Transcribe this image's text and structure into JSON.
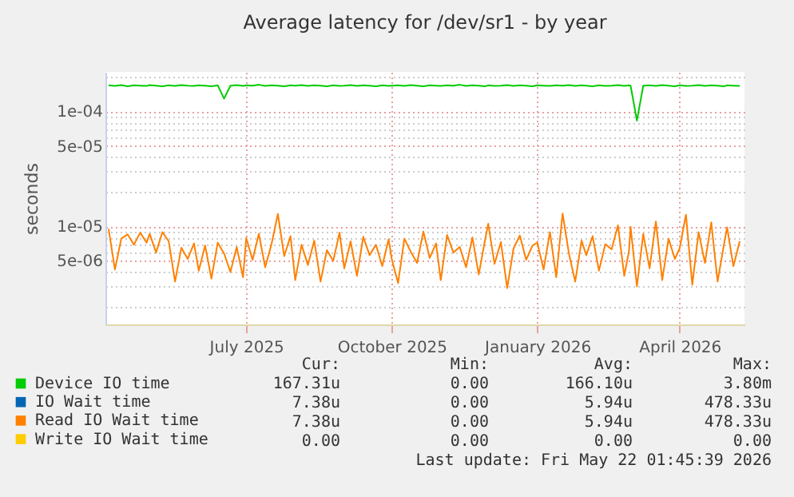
{
  "chart_data": {
    "type": "line",
    "title": "Average latency for /dev/sr1 - by year",
    "ylabel": "seconds",
    "log": "y",
    "grid": true,
    "legend": "bottom left",
    "line_style": "solid",
    "marker": "none",
    "x": [
      "2025-04-05",
      "2025-04-09",
      "2025-04-13",
      "2025-04-17",
      "2025-04-21",
      "2025-04-25",
      "2025-04-29",
      "2025-05-01",
      "2025-05-05",
      "2025-05-09",
      "2025-05-13",
      "2025-05-17",
      "2025-05-21",
      "2025-05-25",
      "2025-05-29",
      "2025-06-01",
      "2025-06-05",
      "2025-06-09",
      "2025-06-13",
      "2025-06-17",
      "2025-06-21",
      "2025-06-25",
      "2025-06-29",
      "2025-07-01",
      "2025-07-05",
      "2025-07-09",
      "2025-07-13",
      "2025-07-17",
      "2025-07-21",
      "2025-07-25",
      "2025-07-29",
      "2025-08-01",
      "2025-08-05",
      "2025-08-09",
      "2025-08-13",
      "2025-08-17",
      "2025-08-21",
      "2025-08-25",
      "2025-08-29",
      "2025-09-01",
      "2025-09-05",
      "2025-09-09",
      "2025-09-13",
      "2025-09-17",
      "2025-09-21",
      "2025-09-25",
      "2025-09-29",
      "2025-10-01",
      "2025-10-05",
      "2025-10-09",
      "2025-10-13",
      "2025-10-17",
      "2025-10-21",
      "2025-10-25",
      "2025-10-29",
      "2025-11-01",
      "2025-11-05",
      "2025-11-09",
      "2025-11-13",
      "2025-11-17",
      "2025-11-21",
      "2025-11-25",
      "2025-11-29",
      "2025-12-01",
      "2025-12-05",
      "2025-12-09",
      "2025-12-13",
      "2025-12-17",
      "2025-12-21",
      "2025-12-25",
      "2025-12-29",
      "2026-01-01",
      "2026-01-05",
      "2026-01-09",
      "2026-01-13",
      "2026-01-17",
      "2026-01-21",
      "2026-01-25",
      "2026-01-29",
      "2026-02-01",
      "2026-02-05",
      "2026-02-09",
      "2026-02-13",
      "2026-02-17",
      "2026-02-21",
      "2026-02-25",
      "2026-02-28",
      "2026-03-01",
      "2026-03-05",
      "2026-03-09",
      "2026-03-13",
      "2026-03-17",
      "2026-03-21",
      "2026-03-25",
      "2026-03-29",
      "2026-04-01",
      "2026-04-05",
      "2026-04-09",
      "2026-04-13",
      "2026-04-17",
      "2026-04-21",
      "2026-04-25",
      "2026-04-29",
      "2026-05-01",
      "2026-05-05",
      "2026-05-09"
    ],
    "xlim": [
      "2025-04-03",
      "2026-05-12"
    ],
    "xticks": [
      {
        "value": "2025-07-01",
        "label": "July 2025"
      },
      {
        "value": "2025-10-01",
        "label": "October 2025"
      },
      {
        "value": "2026-01-01",
        "label": "January 2026"
      },
      {
        "value": "2026-04-01",
        "label": "April 2026"
      }
    ],
    "ylim": [
      1.4e-06,
      0.00022
    ],
    "yticks": [
      {
        "value": 2e-06,
        "label": null
      },
      {
        "value": 3e-06,
        "label": null
      },
      {
        "value": 4e-06,
        "label": null
      },
      {
        "value": 5e-06,
        "label": "5e-06"
      },
      {
        "value": 6e-06,
        "label": null
      },
      {
        "value": 7e-06,
        "label": null
      },
      {
        "value": 8e-06,
        "label": null
      },
      {
        "value": 9e-06,
        "label": null
      },
      {
        "value": 1e-05,
        "label": "1e-05"
      },
      {
        "value": 2e-05,
        "label": null
      },
      {
        "value": 3e-05,
        "label": null
      },
      {
        "value": 4e-05,
        "label": null
      },
      {
        "value": 5e-05,
        "label": "5e-05"
      },
      {
        "value": 6e-05,
        "label": null
      },
      {
        "value": 7e-05,
        "label": null
      },
      {
        "value": 8e-05,
        "label": null
      },
      {
        "value": 9e-05,
        "label": null
      },
      {
        "value": 0.0001,
        "label": "1e-04"
      },
      {
        "value": 0.0002,
        "label": null
      }
    ],
    "series": [
      {
        "name": "Device IO time",
        "color": "#00cc00",
        "values": [
          0.000168,
          0.000166,
          0.000169,
          0.000165,
          0.000168,
          0.000167,
          0.000166,
          0.000169,
          0.000167,
          0.000165,
          0.000168,
          0.000166,
          0.000169,
          0.000167,
          0.000166,
          0.000168,
          0.000167,
          0.000165,
          0.000168,
          0.000129,
          0.000167,
          0.000169,
          0.000166,
          0.000168,
          0.000167,
          0.00017,
          0.000166,
          0.000168,
          0.000167,
          0.000165,
          0.000168,
          0.000167,
          0.000169,
          0.000166,
          0.000168,
          0.000167,
          0.000165,
          0.000168,
          0.000166,
          0.000167,
          0.000169,
          0.000166,
          0.000168,
          0.000167,
          0.000165,
          0.000168,
          0.000166,
          0.000167,
          0.000168,
          0.000166,
          0.000169,
          0.000167,
          0.000165,
          0.000168,
          0.000167,
          0.000166,
          0.000168,
          0.000167,
          0.00017,
          0.000166,
          0.000168,
          0.000167,
          0.000165,
          0.000168,
          0.000166,
          0.000167,
          0.000169,
          0.000166,
          0.000168,
          0.000167,
          0.000165,
          0.000168,
          0.000167,
          0.000166,
          0.000168,
          0.000167,
          0.000169,
          0.000166,
          0.000168,
          0.000167,
          0.000165,
          0.000168,
          0.000166,
          0.000167,
          0.000169,
          0.000166,
          0.000168,
          0.000167,
          8.3e-05,
          0.000167,
          0.000168,
          0.000166,
          0.000169,
          0.000167,
          0.000165,
          0.000168,
          0.000166,
          0.000167,
          0.000169,
          0.000166,
          0.000168,
          0.000167,
          0.000165,
          0.000168,
          0.000167,
          0.000166
        ]
      },
      {
        "name": "IO Wait time",
        "color": "#0066b3",
        "values": [
          null,
          null,
          null,
          null,
          null,
          null,
          null,
          null,
          null,
          null,
          null,
          null,
          null,
          null,
          null,
          null,
          null,
          null,
          null,
          null,
          null,
          null,
          null,
          null,
          null,
          null,
          null,
          null,
          null,
          null,
          null,
          null,
          null,
          null,
          null,
          null,
          null,
          null,
          null,
          null,
          null,
          null,
          null,
          null,
          null,
          null,
          null,
          null,
          null,
          null,
          null,
          null,
          null,
          null,
          null,
          null,
          null,
          null,
          null,
          null,
          null,
          null,
          null,
          null,
          null,
          null,
          null,
          null,
          null,
          null,
          null,
          null,
          null,
          null,
          null,
          null,
          null,
          null,
          null,
          null,
          null,
          null,
          null,
          null,
          null,
          null,
          null,
          null,
          null,
          null,
          null,
          null,
          null,
          null,
          null,
          null,
          null,
          null,
          null,
          null,
          null,
          null,
          null,
          null,
          null,
          null
        ]
      },
      {
        "name": "Read IO Wait time",
        "color": "#ff8000",
        "values": [
          9.5e-06,
          4.2e-06,
          7.8e-06,
          8.5e-06,
          6.9e-06,
          8.8e-06,
          7.2e-06,
          8.6e-06,
          5.9e-06,
          8.9e-06,
          7.4e-06,
          3.3e-06,
          6.5e-06,
          5.2e-06,
          7.1e-06,
          4.1e-06,
          6.8e-06,
          3.5e-06,
          7.2e-06,
          5.8e-06,
          4e-06,
          6.6e-06,
          3.6e-06,
          7.9e-06,
          5.1e-06,
          8.6e-06,
          4.4e-06,
          7e-06,
          1.28e-05,
          5.5e-06,
          8.2e-06,
          3.4e-06,
          6.9e-06,
          4.6e-06,
          7.5e-06,
          3.3e-06,
          6.2e-06,
          5e-06,
          8.8e-06,
          4.3e-06,
          7.4e-06,
          3.7e-06,
          8.1e-06,
          5.6e-06,
          6.9e-06,
          4.5e-06,
          7.7e-06,
          5.2e-06,
          3.2e-06,
          7.8e-06,
          6e-06,
          4.8e-06,
          9e-06,
          5.3e-06,
          7.1e-06,
          3.4e-06,
          8.4e-06,
          5.9e-06,
          6.6e-06,
          4.4e-06,
          8e-06,
          3.8e-06,
          7.6e-06,
          1.05e-05,
          4.7e-06,
          7.3e-06,
          2.9e-06,
          6.4e-06,
          8.3e-06,
          5.1e-06,
          6.8e-06,
          7.2e-06,
          4.2e-06,
          8.9e-06,
          3.6e-06,
          1.29e-05,
          5.8e-06,
          3.3e-06,
          7.5e-06,
          5.6e-06,
          8.2e-06,
          4.1e-06,
          7e-06,
          6.3e-06,
          1.02e-05,
          3.7e-06,
          6.1e-06,
          9.9e-06,
          3e-06,
          8.6e-06,
          4.3e-06,
          1.1e-05,
          3.4e-06,
          7.8e-06,
          5.2e-06,
          6.4e-06,
          1.26e-05,
          3.1e-06,
          8.9e-06,
          4.8e-06,
          1.08e-05,
          3.3e-06,
          6.9e-06,
          9.8e-06,
          4.5e-06,
          7.4e-06
        ]
      },
      {
        "name": "Write IO Wait time",
        "color": "#ffcc00",
        "values": [
          null,
          null,
          null,
          null,
          null,
          null,
          null,
          null,
          null,
          null,
          null,
          null,
          null,
          null,
          null,
          null,
          null,
          null,
          null,
          null,
          null,
          null,
          null,
          null,
          null,
          null,
          null,
          null,
          null,
          null,
          null,
          null,
          null,
          null,
          null,
          null,
          null,
          null,
          null,
          null,
          null,
          null,
          null,
          null,
          null,
          null,
          null,
          null,
          null,
          null,
          null,
          null,
          null,
          null,
          null,
          null,
          null,
          null,
          null,
          null,
          null,
          null,
          null,
          null,
          null,
          null,
          null,
          null,
          null,
          null,
          null,
          null,
          null,
          null,
          null,
          null,
          null,
          null,
          null,
          null,
          null,
          null,
          null,
          null,
          null,
          null,
          null,
          null,
          null,
          null,
          null,
          null,
          null,
          null,
          null,
          null,
          null,
          null,
          null,
          null,
          null,
          null,
          null,
          null,
          null,
          null
        ]
      }
    ],
    "annotations": [
      "Cur:",
      "Min:",
      "Avg:",
      "Max:",
      "167.31u",
      "0.00",
      "166.10u",
      "3.80m",
      "7.38u",
      "0.00",
      "5.94u",
      "478.33u",
      "7.38u",
      "0.00",
      "5.94u",
      "478.33u",
      "0.00",
      "0.00",
      "0.00",
      "0.00",
      "Last update: Fri May 22 01:45:39 2026"
    ]
  }
}
